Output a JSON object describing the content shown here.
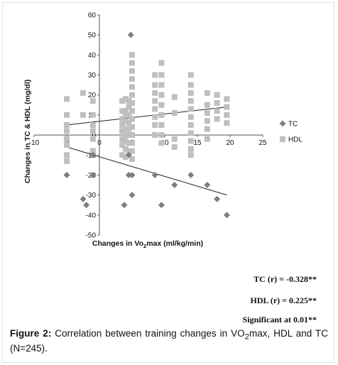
{
  "chart_data": {
    "type": "scatter",
    "xlabel_prefix": "Changes in Vo",
    "xlabel_sub": "2",
    "xlabel_suffix": "max (ml/kg/min)",
    "ylabel": "Changes in TC & HDL (mg/dl)",
    "xlim": [
      -10,
      25
    ],
    "ylim": [
      -50,
      60
    ],
    "xticks": [
      -10,
      -5,
      0,
      5,
      10,
      15,
      20,
      25
    ],
    "yticks": [
      -50,
      -40,
      -30,
      -20,
      -10,
      0,
      10,
      20,
      30,
      40,
      50,
      60
    ],
    "grid": false,
    "legend_position": "right",
    "series": [
      {
        "name": "TC",
        "marker": "diamond",
        "color": "#7f7f7f",
        "points": [
          [
            4.8,
            50
          ],
          [
            -5,
            -20
          ],
          [
            -2.5,
            -32
          ],
          [
            -2,
            -35
          ],
          [
            -1,
            -10
          ],
          [
            -1,
            -20
          ],
          [
            3.8,
            -35
          ],
          [
            4.5,
            -20
          ],
          [
            5,
            -20
          ],
          [
            5,
            -30
          ],
          [
            4.5,
            -10
          ],
          [
            8.5,
            -20
          ],
          [
            9.5,
            -35
          ],
          [
            11.5,
            -25
          ],
          [
            14,
            -20
          ],
          [
            16.5,
            -25
          ],
          [
            18,
            -32
          ],
          [
            19.5,
            -40
          ]
        ],
        "trendline": [
          [
            -5,
            -6
          ],
          [
            19.5,
            -30
          ]
        ]
      },
      {
        "name": "HDL",
        "marker": "square",
        "color": "#bfbfbf",
        "points": [
          [
            -5,
            18
          ],
          [
            -5,
            10
          ],
          [
            -5,
            5
          ],
          [
            -5,
            2
          ],
          [
            -5,
            -2
          ],
          [
            -5,
            -5
          ],
          [
            -5,
            -10
          ],
          [
            -5,
            -13
          ],
          [
            -2.5,
            21
          ],
          [
            -2.5,
            10
          ],
          [
            -1,
            17
          ],
          [
            -1,
            10
          ],
          [
            -1,
            5
          ],
          [
            -1,
            2
          ],
          [
            -1,
            -2
          ],
          [
            -1,
            -8
          ],
          [
            3.5,
            17
          ],
          [
            3.5,
            12
          ],
          [
            3.5,
            8
          ],
          [
            3.5,
            5
          ],
          [
            3.5,
            2
          ],
          [
            3.5,
            -2
          ],
          [
            3.5,
            -5
          ],
          [
            3.5,
            -10
          ],
          [
            4,
            18
          ],
          [
            4,
            12
          ],
          [
            4,
            10
          ],
          [
            4,
            7
          ],
          [
            4,
            3
          ],
          [
            4,
            0
          ],
          [
            4,
            -3
          ],
          [
            4,
            -7
          ],
          [
            4,
            -11
          ],
          [
            4.5,
            17
          ],
          [
            4.5,
            14
          ],
          [
            4.5,
            10
          ],
          [
            4.5,
            6
          ],
          [
            4.5,
            3
          ],
          [
            4.5,
            0
          ],
          [
            4.5,
            -4
          ],
          [
            4.5,
            -8
          ],
          [
            5,
            40
          ],
          [
            5,
            36
          ],
          [
            5,
            32
          ],
          [
            5,
            28
          ],
          [
            5,
            24
          ],
          [
            5,
            20
          ],
          [
            5,
            16
          ],
          [
            5,
            12
          ],
          [
            5,
            8
          ],
          [
            5,
            4
          ],
          [
            5,
            0
          ],
          [
            5,
            -4
          ],
          [
            5,
            -8
          ],
          [
            5,
            -12
          ],
          [
            8.5,
            30
          ],
          [
            8.5,
            25
          ],
          [
            8.5,
            21
          ],
          [
            8.5,
            17
          ],
          [
            8.5,
            13
          ],
          [
            8.5,
            9
          ],
          [
            8.5,
            5
          ],
          [
            8.5,
            0
          ],
          [
            9.5,
            36
          ],
          [
            9.5,
            30
          ],
          [
            9.5,
            25
          ],
          [
            9.5,
            20
          ],
          [
            9.5,
            15
          ],
          [
            9.5,
            10
          ],
          [
            9.5,
            5
          ],
          [
            9.5,
            0
          ],
          [
            9.5,
            -4
          ],
          [
            11.5,
            19
          ],
          [
            11.5,
            11
          ],
          [
            11.5,
            -2
          ],
          [
            11.5,
            -6
          ],
          [
            14,
            30
          ],
          [
            14,
            25
          ],
          [
            14,
            21
          ],
          [
            14,
            17
          ],
          [
            14,
            13
          ],
          [
            14,
            9
          ],
          [
            14,
            5
          ],
          [
            14,
            1
          ],
          [
            14,
            -3
          ],
          [
            14,
            -7
          ],
          [
            14,
            -10
          ],
          [
            16.5,
            21
          ],
          [
            16.5,
            15
          ],
          [
            16.5,
            11
          ],
          [
            16.5,
            7
          ],
          [
            16.5,
            3
          ],
          [
            16.5,
            -2
          ],
          [
            18,
            20
          ],
          [
            18,
            16
          ],
          [
            18,
            12
          ],
          [
            18,
            8
          ],
          [
            19.5,
            18
          ],
          [
            19.5,
            14
          ],
          [
            19.5,
            10
          ],
          [
            19.5,
            6
          ]
        ],
        "trendline": [
          [
            -5,
            5
          ],
          [
            19.5,
            14
          ]
        ]
      }
    ]
  },
  "stats": {
    "tc": "TC (r) = -0.328**",
    "hdl": "HDL (r) = 0.225**",
    "sig": "Significant at 0.01**"
  },
  "caption": {
    "label": "Figure 2:",
    "text_before": " Correlation between training changes in VO",
    "sub": "2",
    "text_after": "max, HDL and TC (N=245)."
  }
}
